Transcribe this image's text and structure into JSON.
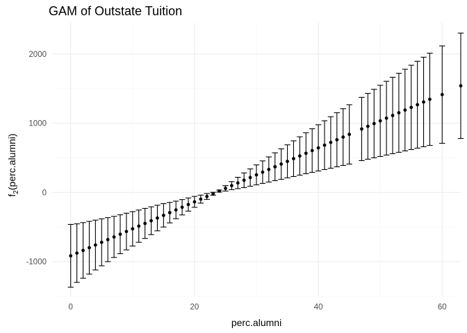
{
  "chart_data": {
    "type": "scatter",
    "title": "GAM of Outstate Tuition",
    "xlabel": "perc.alumni",
    "ylabel_main": "f",
    "ylabel_sub": "2",
    "ylabel_tail": "(perc.alumni)",
    "xlim": [
      -3,
      63
    ],
    "ylim": [
      -1500,
      2450
    ],
    "x_ticks": [
      0,
      20,
      40,
      60
    ],
    "y_ticks": [
      -1000,
      0,
      1000,
      2000
    ],
    "x_tick_labels": [
      "0",
      "20",
      "40",
      "60"
    ],
    "y_tick_labels": [
      "-1000",
      "0",
      "1000",
      "2000"
    ],
    "grid": true,
    "series": [
      {
        "points": [
          {
            "x": 0,
            "y": -916,
            "lower": -1370,
            "upper": -462
          },
          {
            "x": 1,
            "y": -877,
            "lower": -1300,
            "upper": -454
          },
          {
            "x": 2,
            "y": -838,
            "lower": -1240,
            "upper": -436
          },
          {
            "x": 3,
            "y": -799,
            "lower": -1180,
            "upper": -418
          },
          {
            "x": 4,
            "y": -760,
            "lower": -1120,
            "upper": -400
          },
          {
            "x": 5,
            "y": -721,
            "lower": -1060,
            "upper": -382
          },
          {
            "x": 6,
            "y": -682,
            "lower": -1000,
            "upper": -364
          },
          {
            "x": 7,
            "y": -643,
            "lower": -940,
            "upper": -346
          },
          {
            "x": 8,
            "y": -604,
            "lower": -885,
            "upper": -323
          },
          {
            "x": 9,
            "y": -565,
            "lower": -830,
            "upper": -300
          },
          {
            "x": 10,
            "y": -526,
            "lower": -775,
            "upper": -277
          },
          {
            "x": 11,
            "y": -487,
            "lower": -720,
            "upper": -254
          },
          {
            "x": 12,
            "y": -448,
            "lower": -665,
            "upper": -231
          },
          {
            "x": 13,
            "y": -409,
            "lower": -610,
            "upper": -208
          },
          {
            "x": 14,
            "y": -370,
            "lower": -555,
            "upper": -185
          },
          {
            "x": 15,
            "y": -331,
            "lower": -500,
            "upper": -162
          },
          {
            "x": 16,
            "y": -292,
            "lower": -440,
            "upper": -144
          },
          {
            "x": 17,
            "y": -253,
            "lower": -380,
            "upper": -126
          },
          {
            "x": 18,
            "y": -214,
            "lower": -325,
            "upper": -103
          },
          {
            "x": 19,
            "y": -175,
            "lower": -270,
            "upper": -80
          },
          {
            "x": 20,
            "y": -136,
            "lower": -215,
            "upper": -57
          },
          {
            "x": 21,
            "y": -97,
            "lower": -155,
            "upper": -39
          },
          {
            "x": 22,
            "y": -58,
            "lower": -100,
            "upper": -16
          },
          {
            "x": 23,
            "y": -19,
            "lower": -40,
            "upper": 2
          },
          {
            "x": 24,
            "y": 20,
            "lower": 5,
            "upper": 35
          },
          {
            "x": 25,
            "y": 59,
            "lower": 20,
            "upper": 98
          },
          {
            "x": 26,
            "y": 98,
            "lower": 40,
            "upper": 156
          },
          {
            "x": 27,
            "y": 137,
            "lower": 55,
            "upper": 219
          },
          {
            "x": 28,
            "y": 176,
            "lower": 70,
            "upper": 282
          },
          {
            "x": 29,
            "y": 215,
            "lower": 90,
            "upper": 340
          },
          {
            "x": 30,
            "y": 254,
            "lower": 110,
            "upper": 398
          },
          {
            "x": 31,
            "y": 293,
            "lower": 130,
            "upper": 456
          },
          {
            "x": 32,
            "y": 332,
            "lower": 150,
            "upper": 514
          },
          {
            "x": 33,
            "y": 371,
            "lower": 170,
            "upper": 572
          },
          {
            "x": 34,
            "y": 410,
            "lower": 190,
            "upper": 630
          },
          {
            "x": 35,
            "y": 449,
            "lower": 210,
            "upper": 688
          },
          {
            "x": 36,
            "y": 488,
            "lower": 230,
            "upper": 746
          },
          {
            "x": 37,
            "y": 527,
            "lower": 250,
            "upper": 804
          },
          {
            "x": 38,
            "y": 566,
            "lower": 270,
            "upper": 862
          },
          {
            "x": 39,
            "y": 605,
            "lower": 290,
            "upper": 920
          },
          {
            "x": 40,
            "y": 644,
            "lower": 310,
            "upper": 978
          },
          {
            "x": 41,
            "y": 683,
            "lower": 330,
            "upper": 1036
          },
          {
            "x": 42,
            "y": 722,
            "lower": 350,
            "upper": 1094
          },
          {
            "x": 43,
            "y": 761,
            "lower": 370,
            "upper": 1152
          },
          {
            "x": 44,
            "y": 800,
            "lower": 390,
            "upper": 1210
          },
          {
            "x": 45,
            "y": 839,
            "lower": 410,
            "upper": 1268
          },
          {
            "x": 47,
            "y": 917,
            "lower": 460,
            "upper": 1374
          },
          {
            "x": 48,
            "y": 956,
            "lower": 480,
            "upper": 1432
          },
          {
            "x": 49,
            "y": 995,
            "lower": 500,
            "upper": 1490
          },
          {
            "x": 50,
            "y": 1034,
            "lower": 520,
            "upper": 1548
          },
          {
            "x": 51,
            "y": 1073,
            "lower": 540,
            "upper": 1606
          },
          {
            "x": 52,
            "y": 1112,
            "lower": 560,
            "upper": 1664
          },
          {
            "x": 53,
            "y": 1151,
            "lower": 580,
            "upper": 1722
          },
          {
            "x": 54,
            "y": 1190,
            "lower": 600,
            "upper": 1780
          },
          {
            "x": 55,
            "y": 1229,
            "lower": 620,
            "upper": 1838
          },
          {
            "x": 56,
            "y": 1268,
            "lower": 640,
            "upper": 1896
          },
          {
            "x": 57,
            "y": 1307,
            "lower": 660,
            "upper": 1954
          },
          {
            "x": 58,
            "y": 1346,
            "lower": 680,
            "upper": 2012
          },
          {
            "x": 60,
            "y": 1414,
            "lower": 710,
            "upper": 2118
          },
          {
            "x": 63,
            "y": 1541,
            "lower": 780,
            "upper": 2302
          }
        ]
      }
    ]
  }
}
